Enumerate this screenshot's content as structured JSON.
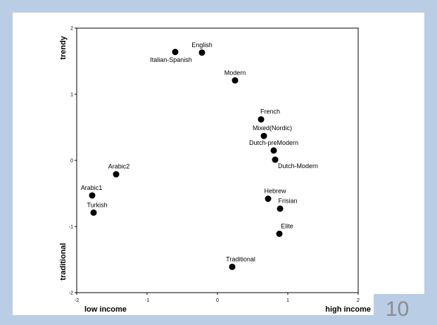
{
  "slide": {
    "page_number": "10",
    "colors": {
      "background": "#b9cde5",
      "panel": "#ffffff",
      "marker": "#000000"
    }
  },
  "chart_data": {
    "type": "scatter",
    "title": "",
    "x_ticks": [
      "-2",
      "-1",
      "0",
      "1",
      "2"
    ],
    "y_ticks": [
      "2",
      "1",
      "0",
      "-1",
      "-2"
    ],
    "xlim": [
      -2,
      2
    ],
    "ylim": [
      -2,
      2
    ],
    "grid": false,
    "x_axis_labels": {
      "left": "low income",
      "right": "high income"
    },
    "y_axis_labels": {
      "top": "trendy",
      "bottom": "traditional"
    },
    "points": [
      {
        "label": "English",
        "x": -0.22,
        "y": 1.63
      },
      {
        "label": "Italian-Spanish",
        "x": -0.6,
        "y": 1.64
      },
      {
        "label": "Modern",
        "x": 0.25,
        "y": 1.21
      },
      {
        "label": "French",
        "x": 0.62,
        "y": 0.62
      },
      {
        "label": "Mixed(Nordic)",
        "x": 0.66,
        "y": 0.37
      },
      {
        "label": "Dutch-preModern",
        "x": 0.8,
        "y": 0.15
      },
      {
        "label": "Dutch-Modern",
        "x": 0.82,
        "y": 0.01
      },
      {
        "label": "Arabic2",
        "x": -1.44,
        "y": -0.21
      },
      {
        "label": "Arabic1",
        "x": -1.78,
        "y": -0.53
      },
      {
        "label": "Turkish",
        "x": -1.76,
        "y": -0.79
      },
      {
        "label": "Hebrew",
        "x": 0.72,
        "y": -0.58
      },
      {
        "label": "Frisian",
        "x": 0.89,
        "y": -0.73
      },
      {
        "label": "Elite",
        "x": 0.88,
        "y": -1.11
      },
      {
        "label": "Traditional",
        "x": 0.21,
        "y": -1.61
      }
    ]
  }
}
